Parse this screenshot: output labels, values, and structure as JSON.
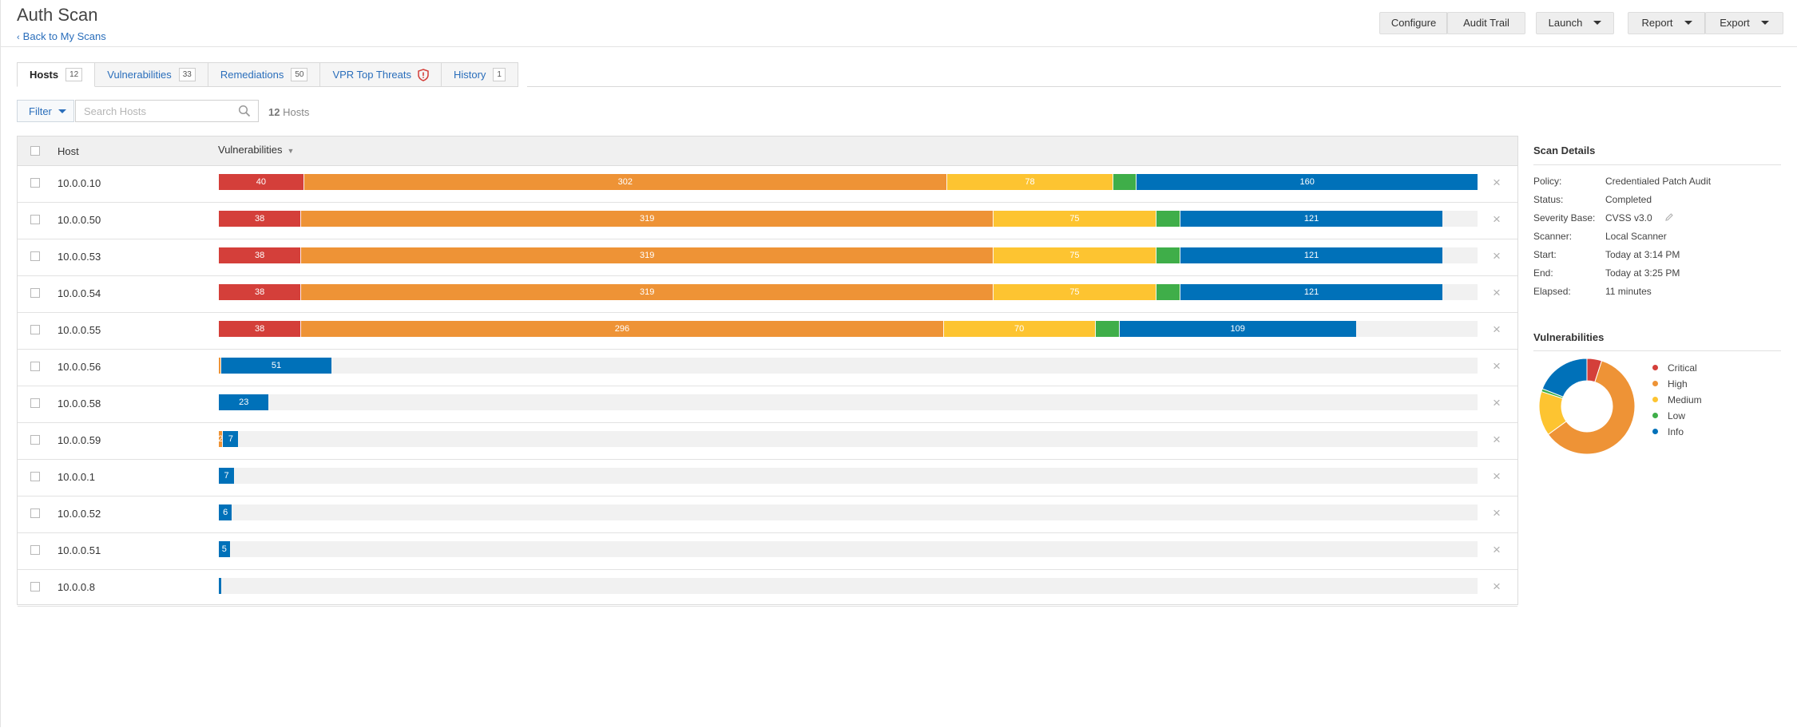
{
  "header": {
    "title": "Auth Scan",
    "back_label": "Back to My Scans",
    "buttons": {
      "configure": "Configure",
      "audit_trail": "Audit Trail",
      "launch": "Launch",
      "report": "Report",
      "export": "Export"
    }
  },
  "tabs": [
    {
      "label": "Hosts",
      "count": "12",
      "active": true
    },
    {
      "label": "Vulnerabilities",
      "count": "33"
    },
    {
      "label": "Remediations",
      "count": "50"
    },
    {
      "label": "VPR Top Threats",
      "icon": "shield-icon"
    },
    {
      "label": "History",
      "count": "1"
    }
  ],
  "filter": {
    "label": "Filter",
    "search_placeholder": "Search Hosts",
    "count_number": "12",
    "count_suffix": "Hosts"
  },
  "table": {
    "col_host": "Host",
    "col_vulns": "Vulnerabilities",
    "colors": {
      "critical": "#d43f3a",
      "high": "#ee9336",
      "medium": "#fdc431",
      "low": "#3fae49",
      "info": "#0071b9"
    },
    "bar_scale_max": 580,
    "rows": [
      {
        "host": "10.0.0.10",
        "critical": 40,
        "high": 302,
        "medium": 78,
        "low": 11,
        "info": 160
      },
      {
        "host": "10.0.0.50",
        "critical": 38,
        "high": 319,
        "medium": 75,
        "low": 11,
        "info": 121
      },
      {
        "host": "10.0.0.53",
        "critical": 38,
        "high": 319,
        "medium": 75,
        "low": 11,
        "info": 121
      },
      {
        "host": "10.0.0.54",
        "critical": 38,
        "high": 319,
        "medium": 75,
        "low": 11,
        "info": 121
      },
      {
        "host": "10.0.0.55",
        "critical": 38,
        "high": 296,
        "medium": 70,
        "low": 11,
        "info": 109
      },
      {
        "host": "10.0.0.56",
        "critical": 0,
        "high": 1,
        "medium": 0,
        "low": 0,
        "info": 51
      },
      {
        "host": "10.0.0.58",
        "critical": 0,
        "high": 0,
        "medium": 0,
        "low": 0,
        "info": 23
      },
      {
        "host": "10.0.0.59",
        "critical": 0,
        "high": 2,
        "medium": 0,
        "low": 0,
        "info": 7
      },
      {
        "host": "10.0.0.1",
        "critical": 0,
        "high": 0,
        "medium": 0,
        "low": 0,
        "info": 7
      },
      {
        "host": "10.0.0.52",
        "critical": 0,
        "high": 0,
        "medium": 0,
        "low": 0,
        "info": 6
      },
      {
        "host": "10.0.0.51",
        "critical": 0,
        "high": 0,
        "medium": 0,
        "low": 0,
        "info": 5
      },
      {
        "host": "10.0.0.8",
        "critical": 0,
        "high": 0,
        "medium": 0,
        "low": 0,
        "info": 1
      }
    ]
  },
  "scan_details": {
    "heading": "Scan Details",
    "fields": [
      {
        "label": "Policy:",
        "value": "Credentialed Patch Audit"
      },
      {
        "label": "Status:",
        "value": "Completed"
      },
      {
        "label": "Severity Base:",
        "value": "CVSS v3.0"
      },
      {
        "label": "Scanner:",
        "value": "Local Scanner"
      },
      {
        "label": "Start:",
        "value": "Today at 3:14 PM"
      },
      {
        "label": "End:",
        "value": "Today at 3:25 PM"
      },
      {
        "label": "Elapsed:",
        "value": "11 minutes"
      }
    ]
  },
  "vuln_chart": {
    "heading": "Vulnerabilities",
    "legend": [
      "Critical",
      "High",
      "Medium",
      "Low",
      "Info"
    ]
  },
  "chart_data": {
    "type": "pie",
    "labels": [
      "Critical",
      "High",
      "Medium",
      "Low",
      "Info"
    ],
    "values": [
      5,
      60,
      15,
      1,
      19
    ],
    "colors": [
      "#d43f3a",
      "#ee9336",
      "#fdc431",
      "#3fae49",
      "#0071b9"
    ]
  }
}
